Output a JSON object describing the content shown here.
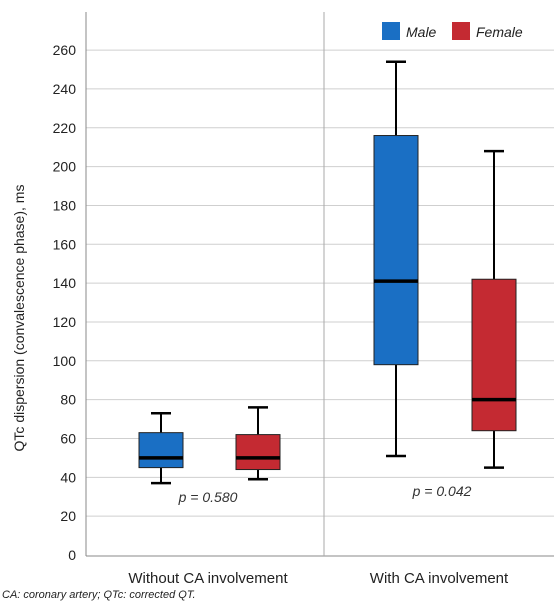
{
  "chart_data": {
    "type": "boxplot",
    "ylabel": "QTc dispersion (convalescence phase), ms",
    "ylim": [
      0,
      270
    ],
    "yticks": [
      0,
      20,
      40,
      60,
      80,
      100,
      120,
      140,
      160,
      180,
      200,
      220,
      240,
      260
    ],
    "categories": [
      "Without CA involvement",
      "With CA involvement"
    ],
    "series": [
      {
        "name": "Male",
        "color": "#1a6fc4",
        "boxes": [
          {
            "min": 37,
            "q1": 45,
            "median": 50,
            "q3": 63,
            "max": 73
          },
          {
            "min": 51,
            "q1": 98,
            "median": 141,
            "q3": 216,
            "max": 254
          }
        ]
      },
      {
        "name": "Female",
        "color": "#c42a32",
        "boxes": [
          {
            "min": 39,
            "q1": 44,
            "median": 50,
            "q3": 62,
            "max": 76
          },
          {
            "min": 45,
            "q1": 64,
            "median": 80,
            "q3": 142,
            "max": 208
          }
        ]
      }
    ],
    "p_values": [
      "p = 0.580",
      "p = 0.042"
    ],
    "grid": true,
    "legend_position": "top-right"
  },
  "footnote": "CA: coronary artery; QTc: corrected QT."
}
